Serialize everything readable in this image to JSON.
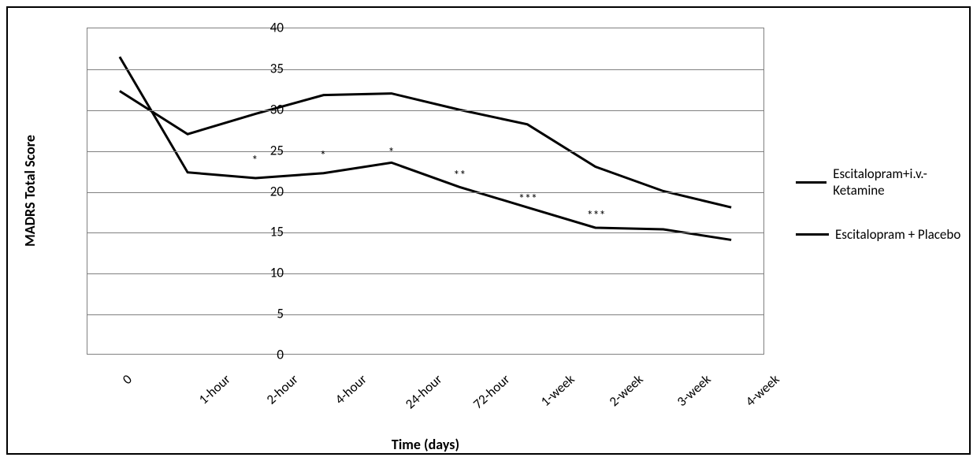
{
  "chart": {
    "type": "line",
    "x_title": "Time (days)",
    "y_title": "MADRS Total Score",
    "title_fontsize": 18,
    "title_fontweight": "bold",
    "tick_fontsize": 17,
    "ylim": [
      0,
      40
    ],
    "ytick_step": 5,
    "yticks": [
      0,
      5,
      10,
      15,
      20,
      25,
      30,
      35,
      40
    ],
    "x_categories": [
      "0",
      "1-hour",
      "2-hour",
      "4-hour",
      "24-hour",
      "72-hour",
      "1-week",
      "2-week",
      "3-week",
      "4-week"
    ],
    "x_label_rotation_deg": -42,
    "background_color": "#ffffff",
    "grid_color": "#808080",
    "line_color": "#000000",
    "line_width": 3,
    "series": [
      {
        "name": "Escitalopram+i.v.-Ketamine",
        "color": "#000000",
        "values": [
          36.5,
          22.3,
          21.6,
          22.2,
          23.5,
          20.5,
          18.0,
          15.5,
          15.3,
          14.0
        ]
      },
      {
        "name": "Escitalopram + Placebo",
        "color": "#000000",
        "values": [
          32.3,
          27.0,
          29.5,
          31.8,
          32.0,
          30.0,
          28.2,
          23.0,
          20.0,
          18.0
        ]
      }
    ],
    "significance_markers": [
      {
        "x_index": 2,
        "y": 23.7,
        "label": "*"
      },
      {
        "x_index": 3,
        "y": 24.3,
        "label": "*"
      },
      {
        "x_index": 4,
        "y": 24.7,
        "label": "*"
      },
      {
        "x_index": 5,
        "y": 21.9,
        "label": "**"
      },
      {
        "x_index": 6,
        "y": 19.0,
        "label": "***"
      },
      {
        "x_index": 7,
        "y": 17.0,
        "label": "***"
      }
    ],
    "legend_items": [
      "Escitalopram+i.v.-Ketamine",
      "Escitalopram + Placebo"
    ]
  }
}
